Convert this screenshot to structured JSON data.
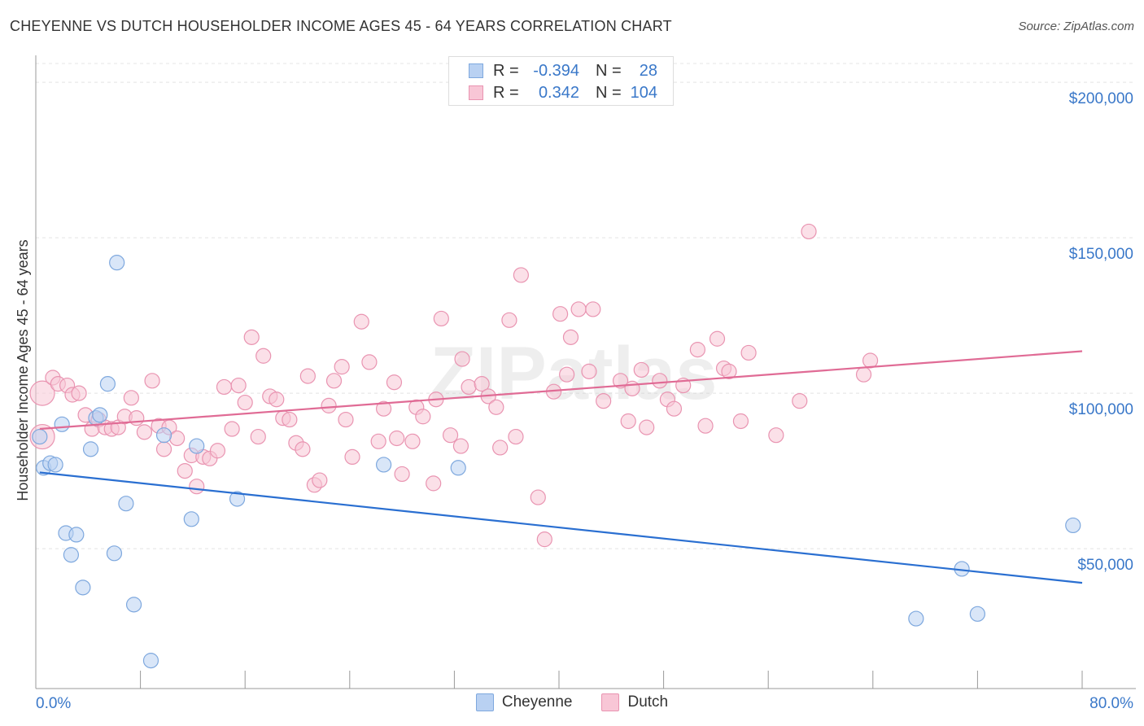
{
  "title": "CHEYENNE VS DUTCH HOUSEHOLDER INCOME AGES 45 - 64 YEARS CORRELATION CHART",
  "source": "Source: ZipAtlas.com",
  "watermark": "ZIPatlas",
  "legend_top": {
    "rows": [
      {
        "r_label": "R =",
        "r_value": "-0.394",
        "n_label": "N =",
        "n_value": "28"
      },
      {
        "r_label": "R =",
        "r_value": "0.342",
        "n_label": "N =",
        "n_value": "104"
      }
    ]
  },
  "legend_bottom": [
    "Cheyenne",
    "Dutch"
  ],
  "colors": {
    "cheyenne_fill": "#b9d1f2",
    "cheyenne_stroke": "#7ea8de",
    "cheyenne_line": "#2a6fd1",
    "dutch_fill": "#f8c6d6",
    "dutch_stroke": "#e994b1",
    "dutch_line": "#e06b95",
    "axis_text": "#3a78c9"
  },
  "chart_data": {
    "type": "scatter",
    "ylabel": "Householder Income Ages 45 - 64 years",
    "xlabel": "",
    "x_tick_labels": [
      "0.0%",
      "80.0%"
    ],
    "y_tick_labels": [
      "$50,000",
      "$100,000",
      "$150,000",
      "$200,000"
    ],
    "y_ticks": [
      50000,
      100000,
      150000,
      200000
    ],
    "xlim": [
      0,
      80
    ],
    "ylim": [
      5000,
      210000
    ],
    "grid": true,
    "series": [
      {
        "name": "Cheyenne",
        "trend": {
          "x": [
            0.3,
            80
          ],
          "y": [
            74500,
            39000
          ]
        },
        "points": [
          [
            0.3,
            86000
          ],
          [
            0.6,
            76000
          ],
          [
            1.1,
            77500
          ],
          [
            1.5,
            77000
          ],
          [
            2.0,
            90000
          ],
          [
            2.3,
            55000
          ],
          [
            2.7,
            48000
          ],
          [
            3.1,
            54500
          ],
          [
            3.6,
            37500
          ],
          [
            4.2,
            82000
          ],
          [
            4.6,
            92000
          ],
          [
            4.9,
            93000
          ],
          [
            5.5,
            103000
          ],
          [
            6.0,
            48500
          ],
          [
            6.2,
            142000
          ],
          [
            6.9,
            64500
          ],
          [
            7.5,
            32000
          ],
          [
            8.8,
            14000
          ],
          [
            9.8,
            86500
          ],
          [
            11.9,
            59500
          ],
          [
            12.3,
            83000
          ],
          [
            15.4,
            66000
          ],
          [
            26.6,
            77000
          ],
          [
            32.3,
            76000
          ],
          [
            67.3,
            27500
          ],
          [
            70.8,
            43500
          ],
          [
            72.0,
            29000
          ],
          [
            79.3,
            57500
          ]
        ]
      },
      {
        "name": "Dutch",
        "trend": {
          "x": [
            0.3,
            80
          ],
          "y": [
            88500,
            113500
          ]
        },
        "points": [
          [
            0.5,
            100000
          ],
          [
            0.5,
            86000
          ],
          [
            1.3,
            105000
          ],
          [
            1.7,
            103000
          ],
          [
            2.4,
            102500
          ],
          [
            2.8,
            99500
          ],
          [
            3.3,
            100000
          ],
          [
            3.8,
            93000
          ],
          [
            4.3,
            88500
          ],
          [
            4.8,
            91500
          ],
          [
            5.3,
            89000
          ],
          [
            5.8,
            88500
          ],
          [
            6.3,
            89000
          ],
          [
            6.8,
            92500
          ],
          [
            7.3,
            98500
          ],
          [
            7.7,
            92000
          ],
          [
            8.3,
            87500
          ],
          [
            8.9,
            104000
          ],
          [
            9.4,
            89500
          ],
          [
            9.8,
            82000
          ],
          [
            10.2,
            89000
          ],
          [
            10.8,
            85500
          ],
          [
            11.4,
            75000
          ],
          [
            11.9,
            80000
          ],
          [
            12.3,
            70000
          ],
          [
            12.8,
            79500
          ],
          [
            13.3,
            79000
          ],
          [
            13.9,
            81500
          ],
          [
            14.4,
            102000
          ],
          [
            15.0,
            88500
          ],
          [
            15.5,
            102500
          ],
          [
            16.0,
            97000
          ],
          [
            16.5,
            118000
          ],
          [
            17.0,
            86000
          ],
          [
            17.4,
            112000
          ],
          [
            17.9,
            99000
          ],
          [
            18.4,
            98000
          ],
          [
            18.9,
            92000
          ],
          [
            19.4,
            91500
          ],
          [
            19.9,
            84000
          ],
          [
            20.4,
            82000
          ],
          [
            20.8,
            105500
          ],
          [
            21.3,
            70500
          ],
          [
            21.7,
            72000
          ],
          [
            22.4,
            96000
          ],
          [
            22.8,
            104000
          ],
          [
            23.4,
            108500
          ],
          [
            23.7,
            91500
          ],
          [
            24.2,
            79500
          ],
          [
            24.9,
            123000
          ],
          [
            25.5,
            110000
          ],
          [
            26.2,
            84500
          ],
          [
            26.6,
            95000
          ],
          [
            27.4,
            103500
          ],
          [
            27.6,
            85500
          ],
          [
            28.0,
            74000
          ],
          [
            28.8,
            84500
          ],
          [
            29.1,
            95500
          ],
          [
            29.6,
            92500
          ],
          [
            30.4,
            71000
          ],
          [
            30.6,
            98000
          ],
          [
            31.0,
            124000
          ],
          [
            31.7,
            86500
          ],
          [
            32.5,
            83000
          ],
          [
            32.6,
            111000
          ],
          [
            33.1,
            102000
          ],
          [
            34.1,
            103000
          ],
          [
            34.6,
            99000
          ],
          [
            35.2,
            95500
          ],
          [
            35.5,
            82500
          ],
          [
            36.2,
            123500
          ],
          [
            36.7,
            86000
          ],
          [
            37.1,
            138000
          ],
          [
            38.4,
            66500
          ],
          [
            38.9,
            53000
          ],
          [
            39.6,
            100500
          ],
          [
            40.1,
            125500
          ],
          [
            40.6,
            106000
          ],
          [
            40.9,
            118000
          ],
          [
            41.5,
            127000
          ],
          [
            42.3,
            107000
          ],
          [
            42.6,
            127000
          ],
          [
            43.4,
            97500
          ],
          [
            44.7,
            104000
          ],
          [
            45.3,
            91000
          ],
          [
            45.6,
            101500
          ],
          [
            46.3,
            107500
          ],
          [
            46.7,
            89000
          ],
          [
            47.7,
            104000
          ],
          [
            48.3,
            98000
          ],
          [
            48.8,
            95000
          ],
          [
            49.5,
            102500
          ],
          [
            50.6,
            114000
          ],
          [
            51.2,
            89500
          ],
          [
            52.1,
            117500
          ],
          [
            52.6,
            108000
          ],
          [
            53.0,
            107000
          ],
          [
            53.9,
            91000
          ],
          [
            54.5,
            113000
          ],
          [
            56.6,
            86500
          ],
          [
            58.4,
            97500
          ],
          [
            59.1,
            152000
          ],
          [
            63.3,
            106000
          ],
          [
            63.8,
            110500
          ]
        ]
      }
    ]
  }
}
